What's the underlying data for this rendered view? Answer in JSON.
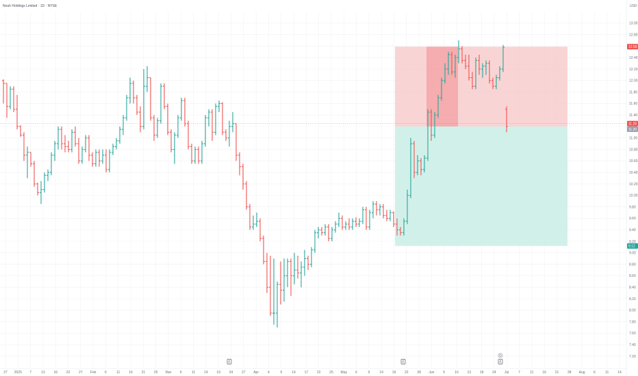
{
  "header": {
    "title": "Nouh Holdings Limited · 1D · NYSE"
  },
  "colors": {
    "up": "#26a69a",
    "down": "#ef5350",
    "loss_zone": "#f7c6c7",
    "loss_zone_dark": "#f28c8f",
    "profit_zone": "#cdeee8",
    "grid": "#f1f2f5",
    "axis_text": "#6b6f7a"
  },
  "chart_data": {
    "type": "ohlc",
    "currency": "USD",
    "ylim": [
      7.2,
      13.2
    ],
    "y_ticks": [
      "13.00",
      "12.80",
      "12.60",
      "12.40",
      "12.20",
      "12.00",
      "11.80",
      "11.60",
      "11.40",
      "11.20",
      "11.00",
      "10.80",
      "10.60",
      "10.40",
      "10.20",
      "10.00",
      "9.80",
      "9.60",
      "9.40",
      "9.20",
      "9.00",
      "8.80",
      "8.60",
      "8.40",
      "8.20",
      "8.00",
      "7.80",
      "7.60",
      "7.40",
      "7.20"
    ],
    "x_ticks": [
      "27",
      "2025",
      "7",
      "13",
      "16",
      "22",
      "27",
      "Feb",
      "6",
      "11",
      "16",
      "21",
      "25",
      "Mar",
      "6",
      "11",
      "14",
      "19",
      "24",
      "27",
      "Apr",
      "4",
      "9",
      "14",
      "17",
      "22",
      "25",
      "May",
      "6",
      "9",
      "14",
      "19",
      "22",
      "28",
      "Jun",
      "5",
      "10",
      "13",
      "18",
      "24",
      "Jul",
      "7",
      "11",
      "16",
      "21",
      "28",
      "Aug",
      "6",
      "11",
      "14"
    ],
    "price_tags": [
      {
        "label": "12.59",
        "value": 12.59,
        "color": "#ef5350"
      },
      {
        "label": "11.25",
        "value": 11.25,
        "color": "#ef5350"
      },
      {
        "label": "11.20",
        "value": 11.2,
        "color": "#9aa0ab"
      },
      {
        "label": "9.12",
        "value": 9.12,
        "color": "#26a69a"
      }
    ],
    "position": {
      "type": "short",
      "entry": 11.2,
      "stop": 12.59,
      "target": 9.12
    },
    "event_markers": [
      {
        "label": "E",
        "x": 335
      },
      {
        "label": "E",
        "x": 589
      },
      {
        "label": "E",
        "x": 731
      },
      {
        "label": "D",
        "x": 731
      }
    ],
    "ohlc": [
      {
        "x": 5,
        "o": 12.0,
        "h": 12.02,
        "l": 11.6,
        "c": 11.95
      },
      {
        "x": 10,
        "o": 11.95,
        "h": 11.95,
        "l": 11.35,
        "c": 11.55
      },
      {
        "x": 15,
        "o": 11.55,
        "h": 11.9,
        "l": 11.5,
        "c": 11.85
      },
      {
        "x": 20,
        "o": 11.85,
        "h": 11.9,
        "l": 11.45,
        "c": 11.5
      },
      {
        "x": 25,
        "o": 11.5,
        "h": 11.75,
        "l": 11.15,
        "c": 11.2
      },
      {
        "x": 30,
        "o": 11.2,
        "h": 11.22,
        "l": 11.02,
        "c": 11.05
      },
      {
        "x": 35,
        "o": 11.05,
        "h": 11.1,
        "l": 10.6,
        "c": 10.7
      },
      {
        "x": 40,
        "o": 10.7,
        "h": 10.85,
        "l": 10.3,
        "c": 10.75
      },
      {
        "x": 45,
        "o": 10.75,
        "h": 10.75,
        "l": 10.5,
        "c": 10.55
      },
      {
        "x": 50,
        "o": 10.55,
        "h": 10.6,
        "l": 10.15,
        "c": 10.2
      },
      {
        "x": 55,
        "o": 10.2,
        "h": 10.22,
        "l": 10.0,
        "c": 10.05
      },
      {
        "x": 60,
        "o": 10.05,
        "h": 10.25,
        "l": 9.85,
        "c": 10.1
      },
      {
        "x": 65,
        "o": 10.1,
        "h": 10.4,
        "l": 10.05,
        "c": 10.35
      },
      {
        "x": 70,
        "o": 10.35,
        "h": 10.45,
        "l": 10.25,
        "c": 10.4
      },
      {
        "x": 75,
        "o": 10.4,
        "h": 10.75,
        "l": 10.35,
        "c": 10.7
      },
      {
        "x": 80,
        "o": 10.7,
        "h": 10.95,
        "l": 10.6,
        "c": 10.9
      },
      {
        "x": 85,
        "o": 10.9,
        "h": 11.2,
        "l": 10.8,
        "c": 11.15
      },
      {
        "x": 90,
        "o": 11.15,
        "h": 11.2,
        "l": 10.8,
        "c": 10.9
      },
      {
        "x": 95,
        "o": 10.9,
        "h": 11.05,
        "l": 10.75,
        "c": 10.85
      },
      {
        "x": 100,
        "o": 10.85,
        "h": 10.95,
        "l": 10.75,
        "c": 10.8
      },
      {
        "x": 105,
        "o": 10.8,
        "h": 11.15,
        "l": 10.75,
        "c": 11.1
      },
      {
        "x": 110,
        "o": 11.1,
        "h": 11.2,
        "l": 10.85,
        "c": 10.9
      },
      {
        "x": 115,
        "o": 10.9,
        "h": 11.0,
        "l": 10.55,
        "c": 10.6
      },
      {
        "x": 120,
        "o": 10.6,
        "h": 10.85,
        "l": 10.55,
        "c": 10.8
      },
      {
        "x": 125,
        "o": 10.8,
        "h": 11.05,
        "l": 10.75,
        "c": 11.0
      },
      {
        "x": 130,
        "o": 11.0,
        "h": 11.05,
        "l": 10.6,
        "c": 10.7
      },
      {
        "x": 135,
        "o": 10.7,
        "h": 10.75,
        "l": 10.5,
        "c": 10.55
      },
      {
        "x": 140,
        "o": 10.55,
        "h": 10.8,
        "l": 10.5,
        "c": 10.75
      },
      {
        "x": 145,
        "o": 10.75,
        "h": 10.8,
        "l": 10.5,
        "c": 10.6
      },
      {
        "x": 150,
        "o": 10.6,
        "h": 10.8,
        "l": 10.55,
        "c": 10.7
      },
      {
        "x": 155,
        "o": 10.7,
        "h": 10.8,
        "l": 10.4,
        "c": 10.45
      },
      {
        "x": 160,
        "o": 10.45,
        "h": 10.8,
        "l": 10.4,
        "c": 10.75
      },
      {
        "x": 165,
        "o": 10.75,
        "h": 10.9,
        "l": 10.7,
        "c": 10.85
      },
      {
        "x": 170,
        "o": 10.85,
        "h": 11.0,
        "l": 10.8,
        "c": 10.95
      },
      {
        "x": 175,
        "o": 10.95,
        "h": 11.2,
        "l": 10.9,
        "c": 11.15
      },
      {
        "x": 180,
        "o": 11.15,
        "h": 11.4,
        "l": 11.05,
        "c": 11.35
      },
      {
        "x": 185,
        "o": 11.35,
        "h": 11.75,
        "l": 11.3,
        "c": 11.7
      },
      {
        "x": 190,
        "o": 11.7,
        "h": 12.05,
        "l": 11.6,
        "c": 11.95
      },
      {
        "x": 195,
        "o": 11.95,
        "h": 12.0,
        "l": 11.6,
        "c": 11.7
      },
      {
        "x": 200,
        "o": 11.7,
        "h": 11.75,
        "l": 11.4,
        "c": 11.45
      },
      {
        "x": 205,
        "o": 11.45,
        "h": 11.55,
        "l": 11.1,
        "c": 11.2
      },
      {
        "x": 210,
        "o": 11.2,
        "h": 12.2,
        "l": 11.15,
        "c": 11.9
      },
      {
        "x": 215,
        "o": 11.9,
        "h": 12.25,
        "l": 11.8,
        "c": 12.05
      },
      {
        "x": 220,
        "o": 12.05,
        "h": 12.05,
        "l": 11.3,
        "c": 11.35
      },
      {
        "x": 225,
        "o": 11.35,
        "h": 11.4,
        "l": 10.95,
        "c": 11.05
      },
      {
        "x": 230,
        "o": 11.05,
        "h": 11.35,
        "l": 11.0,
        "c": 11.3
      },
      {
        "x": 235,
        "o": 11.3,
        "h": 11.95,
        "l": 11.25,
        "c": 11.9
      },
      {
        "x": 240,
        "o": 11.9,
        "h": 11.95,
        "l": 11.5,
        "c": 11.55
      },
      {
        "x": 245,
        "o": 11.55,
        "h": 11.6,
        "l": 11.05,
        "c": 11.1
      },
      {
        "x": 250,
        "o": 11.1,
        "h": 11.15,
        "l": 10.75,
        "c": 10.8
      },
      {
        "x": 255,
        "o": 10.8,
        "h": 11.1,
        "l": 10.55,
        "c": 11.05
      },
      {
        "x": 260,
        "o": 11.05,
        "h": 11.4,
        "l": 11.0,
        "c": 11.35
      },
      {
        "x": 265,
        "o": 11.35,
        "h": 11.7,
        "l": 11.3,
        "c": 11.65
      },
      {
        "x": 270,
        "o": 11.65,
        "h": 11.7,
        "l": 11.2,
        "c": 11.25
      },
      {
        "x": 275,
        "o": 11.25,
        "h": 11.3,
        "l": 10.8,
        "c": 10.85
      },
      {
        "x": 280,
        "o": 10.85,
        "h": 10.9,
        "l": 10.55,
        "c": 10.6
      },
      {
        "x": 285,
        "o": 10.6,
        "h": 10.85,
        "l": 10.55,
        "c": 10.8
      },
      {
        "x": 290,
        "o": 10.8,
        "h": 10.85,
        "l": 10.55,
        "c": 10.6
      },
      {
        "x": 295,
        "o": 10.6,
        "h": 10.95,
        "l": 10.55,
        "c": 10.9
      },
      {
        "x": 300,
        "o": 10.9,
        "h": 11.4,
        "l": 10.85,
        "c": 11.35
      },
      {
        "x": 305,
        "o": 11.35,
        "h": 11.5,
        "l": 11.2,
        "c": 11.45
      },
      {
        "x": 310,
        "o": 11.45,
        "h": 11.5,
        "l": 10.95,
        "c": 11.1
      },
      {
        "x": 315,
        "o": 11.1,
        "h": 11.6,
        "l": 11.05,
        "c": 11.55
      },
      {
        "x": 320,
        "o": 11.55,
        "h": 11.65,
        "l": 11.45,
        "c": 11.6
      },
      {
        "x": 325,
        "o": 11.6,
        "h": 11.62,
        "l": 11.05,
        "c": 11.1
      },
      {
        "x": 330,
        "o": 11.1,
        "h": 11.15,
        "l": 10.95,
        "c": 11.0
      },
      {
        "x": 335,
        "o": 11.0,
        "h": 11.3,
        "l": 10.85,
        "c": 11.2
      },
      {
        "x": 340,
        "o": 11.2,
        "h": 11.45,
        "l": 11.1,
        "c": 11.25
      },
      {
        "x": 345,
        "o": 11.25,
        "h": 11.25,
        "l": 10.6,
        "c": 10.7
      },
      {
        "x": 350,
        "o": 10.7,
        "h": 10.75,
        "l": 10.35,
        "c": 10.5
      },
      {
        "x": 355,
        "o": 10.5,
        "h": 10.55,
        "l": 10.1,
        "c": 10.2
      },
      {
        "x": 360,
        "o": 10.2,
        "h": 10.25,
        "l": 9.75,
        "c": 9.8
      },
      {
        "x": 365,
        "o": 9.8,
        "h": 9.85,
        "l": 9.4,
        "c": 9.45
      },
      {
        "x": 370,
        "o": 9.45,
        "h": 9.65,
        "l": 9.4,
        "c": 9.5
      },
      {
        "x": 375,
        "o": 9.5,
        "h": 9.7,
        "l": 9.45,
        "c": 9.55
      },
      {
        "x": 380,
        "o": 9.55,
        "h": 9.6,
        "l": 9.2,
        "c": 9.25
      },
      {
        "x": 385,
        "o": 9.25,
        "h": 9.3,
        "l": 8.8,
        "c": 8.85
      },
      {
        "x": 390,
        "o": 8.85,
        "h": 9.0,
        "l": 8.3,
        "c": 8.4
      },
      {
        "x": 395,
        "o": 8.4,
        "h": 8.95,
        "l": 7.9,
        "c": 7.95
      },
      {
        "x": 400,
        "o": 7.95,
        "h": 8.9,
        "l": 7.75,
        "c": 7.95
      },
      {
        "x": 405,
        "o": 7.95,
        "h": 8.5,
        "l": 7.7,
        "c": 8.45
      },
      {
        "x": 410,
        "o": 8.45,
        "h": 8.85,
        "l": 8.1,
        "c": 8.35
      },
      {
        "x": 415,
        "o": 8.35,
        "h": 8.9,
        "l": 8.15,
        "c": 8.6
      },
      {
        "x": 420,
        "o": 8.6,
        "h": 8.9,
        "l": 8.4,
        "c": 8.85
      },
      {
        "x": 425,
        "o": 8.85,
        "h": 8.9,
        "l": 8.25,
        "c": 8.6
      },
      {
        "x": 430,
        "o": 8.6,
        "h": 9.0,
        "l": 8.45,
        "c": 8.7
      },
      {
        "x": 435,
        "o": 8.7,
        "h": 8.95,
        "l": 8.55,
        "c": 8.65
      },
      {
        "x": 440,
        "o": 8.65,
        "h": 8.85,
        "l": 8.4,
        "c": 8.75
      },
      {
        "x": 445,
        "o": 8.75,
        "h": 9.05,
        "l": 8.6,
        "c": 8.9
      },
      {
        "x": 450,
        "o": 8.9,
        "h": 8.95,
        "l": 8.7,
        "c": 8.8
      },
      {
        "x": 455,
        "o": 8.8,
        "h": 9.1,
        "l": 8.75,
        "c": 9.05
      },
      {
        "x": 460,
        "o": 9.05,
        "h": 9.4,
        "l": 9.0,
        "c": 9.35
      },
      {
        "x": 465,
        "o": 9.35,
        "h": 9.45,
        "l": 9.25,
        "c": 9.4
      },
      {
        "x": 470,
        "o": 9.4,
        "h": 9.45,
        "l": 9.3,
        "c": 9.35
      },
      {
        "x": 475,
        "o": 9.35,
        "h": 9.5,
        "l": 9.3,
        "c": 9.45
      },
      {
        "x": 480,
        "o": 9.45,
        "h": 9.5,
        "l": 9.2,
        "c": 9.25
      },
      {
        "x": 485,
        "o": 9.25,
        "h": 9.45,
        "l": 9.2,
        "c": 9.4
      },
      {
        "x": 490,
        "o": 9.4,
        "h": 9.55,
        "l": 9.35,
        "c": 9.5
      },
      {
        "x": 495,
        "o": 9.5,
        "h": 9.7,
        "l": 9.45,
        "c": 9.6
      },
      {
        "x": 500,
        "o": 9.6,
        "h": 9.65,
        "l": 9.4,
        "c": 9.45
      },
      {
        "x": 505,
        "o": 9.45,
        "h": 9.55,
        "l": 9.4,
        "c": 9.5
      },
      {
        "x": 510,
        "o": 9.5,
        "h": 9.6,
        "l": 9.4,
        "c": 9.45
      },
      {
        "x": 515,
        "o": 9.45,
        "h": 9.6,
        "l": 9.4,
        "c": 9.55
      },
      {
        "x": 520,
        "o": 9.55,
        "h": 9.62,
        "l": 9.45,
        "c": 9.5
      },
      {
        "x": 525,
        "o": 9.5,
        "h": 9.6,
        "l": 9.45,
        "c": 9.55
      },
      {
        "x": 530,
        "o": 9.55,
        "h": 9.8,
        "l": 9.5,
        "c": 9.75
      },
      {
        "x": 535,
        "o": 9.75,
        "h": 9.8,
        "l": 9.4,
        "c": 9.45
      },
      {
        "x": 540,
        "o": 9.45,
        "h": 9.75,
        "l": 9.4,
        "c": 9.7
      },
      {
        "x": 545,
        "o": 9.7,
        "h": 9.9,
        "l": 9.6,
        "c": 9.85
      },
      {
        "x": 550,
        "o": 9.85,
        "h": 9.9,
        "l": 9.65,
        "c": 9.75
      },
      {
        "x": 555,
        "o": 9.75,
        "h": 9.85,
        "l": 9.65,
        "c": 9.8
      },
      {
        "x": 560,
        "o": 9.8,
        "h": 9.85,
        "l": 9.6,
        "c": 9.65
      },
      {
        "x": 565,
        "o": 9.65,
        "h": 9.75,
        "l": 9.55,
        "c": 9.6
      },
      {
        "x": 570,
        "o": 9.6,
        "h": 9.75,
        "l": 9.55,
        "c": 9.7
      },
      {
        "x": 575,
        "o": 9.7,
        "h": 9.72,
        "l": 9.45,
        "c": 9.5
      },
      {
        "x": 580,
        "o": 9.5,
        "h": 9.6,
        "l": 9.3,
        "c": 9.4
      },
      {
        "x": 585,
        "o": 9.4,
        "h": 9.45,
        "l": 9.3,
        "c": 9.35
      },
      {
        "x": 590,
        "o": 9.35,
        "h": 9.6,
        "l": 9.3,
        "c": 9.55
      },
      {
        "x": 595,
        "o": 9.55,
        "h": 10.1,
        "l": 9.5,
        "c": 10.0
      },
      {
        "x": 600,
        "o": 10.0,
        "h": 11.0,
        "l": 9.95,
        "c": 10.9
      },
      {
        "x": 605,
        "o": 10.9,
        "h": 10.95,
        "l": 10.3,
        "c": 10.4
      },
      {
        "x": 610,
        "o": 10.4,
        "h": 10.7,
        "l": 10.35,
        "c": 10.6
      },
      {
        "x": 615,
        "o": 10.6,
        "h": 10.65,
        "l": 10.35,
        "c": 10.45
      },
      {
        "x": 620,
        "o": 10.45,
        "h": 10.7,
        "l": 10.4,
        "c": 10.65
      },
      {
        "x": 625,
        "o": 10.65,
        "h": 11.5,
        "l": 10.6,
        "c": 11.45
      },
      {
        "x": 630,
        "o": 11.45,
        "h": 11.5,
        "l": 10.95,
        "c": 11.05
      },
      {
        "x": 635,
        "o": 11.05,
        "h": 11.45,
        "l": 11.0,
        "c": 11.4
      },
      {
        "x": 640,
        "o": 11.4,
        "h": 11.75,
        "l": 11.35,
        "c": 11.7
      },
      {
        "x": 645,
        "o": 11.7,
        "h": 12.05,
        "l": 11.65,
        "c": 12.0
      },
      {
        "x": 650,
        "o": 12.0,
        "h": 12.3,
        "l": 11.95,
        "c": 12.2
      },
      {
        "x": 655,
        "o": 12.2,
        "h": 12.5,
        "l": 12.1,
        "c": 12.45
      },
      {
        "x": 660,
        "o": 12.45,
        "h": 12.5,
        "l": 12.1,
        "c": 12.15
      },
      {
        "x": 665,
        "o": 12.15,
        "h": 12.45,
        "l": 12.05,
        "c": 12.4
      },
      {
        "x": 670,
        "o": 12.4,
        "h": 12.7,
        "l": 12.3,
        "c": 12.55
      },
      {
        "x": 675,
        "o": 12.55,
        "h": 12.6,
        "l": 12.3,
        "c": 12.35
      },
      {
        "x": 680,
        "o": 12.35,
        "h": 12.45,
        "l": 12.2,
        "c": 12.25
      },
      {
        "x": 685,
        "o": 12.25,
        "h": 12.45,
        "l": 12.0,
        "c": 12.05
      },
      {
        "x": 690,
        "o": 12.05,
        "h": 12.15,
        "l": 11.85,
        "c": 11.9
      },
      {
        "x": 695,
        "o": 11.9,
        "h": 12.4,
        "l": 11.85,
        "c": 12.35
      },
      {
        "x": 700,
        "o": 12.35,
        "h": 12.45,
        "l": 12.1,
        "c": 12.2
      },
      {
        "x": 705,
        "o": 12.2,
        "h": 12.3,
        "l": 12.05,
        "c": 12.25
      },
      {
        "x": 710,
        "o": 12.25,
        "h": 12.35,
        "l": 12.1,
        "c": 12.3
      },
      {
        "x": 715,
        "o": 12.3,
        "h": 12.35,
        "l": 11.95,
        "c": 12.0
      },
      {
        "x": 720,
        "o": 12.0,
        "h": 12.05,
        "l": 11.85,
        "c": 11.9
      },
      {
        "x": 725,
        "o": 11.9,
        "h": 12.1,
        "l": 11.85,
        "c": 12.05
      },
      {
        "x": 730,
        "o": 12.05,
        "h": 12.25,
        "l": 12.0,
        "c": 12.2
      },
      {
        "x": 735,
        "o": 12.2,
        "h": 12.62,
        "l": 12.15,
        "c": 12.58
      },
      {
        "x": 740,
        "o": 11.5,
        "h": 11.55,
        "l": 11.1,
        "c": 11.2
      }
    ]
  }
}
